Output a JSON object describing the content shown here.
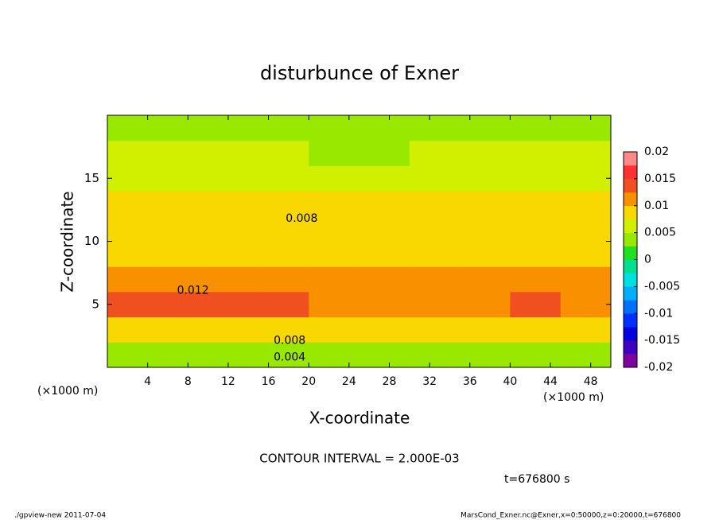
{
  "chart_data": {
    "type": "contour",
    "title": "disturbunce of Exner",
    "x_label": "X-coordinate",
    "y_label": "Z-coordinate",
    "x_unit_left": "(×1000 m)",
    "x_unit_right": "(×1000 m)",
    "x": [
      2.5,
      7.5,
      12.5,
      17.5,
      22.5,
      27.5,
      32.5,
      37.5,
      42.5,
      47.5
    ],
    "z": [
      1,
      3,
      5,
      7,
      9,
      11,
      13,
      15,
      17,
      19
    ],
    "values": [
      [
        0.004,
        0.004,
        0.004,
        0.004,
        0.004,
        0.0035,
        0.003,
        0.0035,
        0.004,
        0.004
      ],
      [
        0.009,
        0.009,
        0.009,
        0.009,
        0.009,
        0.0085,
        0.0075,
        0.0085,
        0.009,
        0.009
      ],
      [
        0.0125,
        0.0125,
        0.0125,
        0.0125,
        0.0115,
        0.011,
        0.011,
        0.011,
        0.0125,
        0.011
      ],
      [
        0.011,
        0.011,
        0.011,
        0.011,
        0.011,
        0.011,
        0.011,
        0.011,
        0.011,
        0.011
      ],
      [
        0.0095,
        0.0095,
        0.0095,
        0.0095,
        0.0095,
        0.0095,
        0.0095,
        0.0095,
        0.0095,
        0.0095
      ],
      [
        0.0085,
        0.0085,
        0.0085,
        0.0085,
        0.0085,
        0.0085,
        0.0085,
        0.0085,
        0.0085,
        0.0085
      ],
      [
        0.0075,
        0.0075,
        0.0075,
        0.0075,
        0.0075,
        0.0075,
        0.0075,
        0.0075,
        0.0075,
        0.0075
      ],
      [
        0.0065,
        0.0065,
        0.0065,
        0.0065,
        0.0065,
        0.0065,
        0.0065,
        0.0065,
        0.0065,
        0.0065
      ],
      [
        0.0055,
        0.0055,
        0.0055,
        0.005,
        0.0045,
        0.0045,
        0.005,
        0.0055,
        0.0055,
        0.0055
      ],
      [
        0.004,
        0.004,
        0.004,
        0.004,
        0.004,
        0.004,
        0.004,
        0.004,
        0.004,
        0.004
      ]
    ],
    "xlim": [
      0,
      50
    ],
    "xticks": [
      4,
      8,
      12,
      16,
      20,
      24,
      28,
      32,
      36,
      40,
      44,
      48
    ],
    "ylim": [
      0,
      20
    ],
    "yticks": [
      5,
      10,
      15
    ],
    "clim": [
      -0.02,
      0.02
    ],
    "cticks": [
      -0.02,
      -0.015,
      -0.01,
      -0.005,
      0,
      0.005,
      0.01,
      0.015,
      0.02
    ],
    "colors": [
      "#8000a0",
      "#4000c0",
      "#0000e0",
      "#0030ff",
      "#0070ff",
      "#00b0ff",
      "#00e0e0",
      "#00e090",
      "#20e020",
      "#98e800",
      "#d0f000",
      "#f8d800",
      "#f89000",
      "#f05020",
      "#ff3030",
      "#ff8888"
    ],
    "contour_labels": [
      {
        "text": "0.008",
        "x": 19.3,
        "y": 11.8
      },
      {
        "text": "0.012",
        "x": 8.5,
        "y": 6.1
      },
      {
        "text": "0.008",
        "x": 18.1,
        "y": 2.1
      },
      {
        "text": "0.004",
        "x": 18.1,
        "y": 0.8
      }
    ],
    "contour_interval": "CONTOUR INTERVAL = 2.000E-03",
    "time": "t=676800 s",
    "footer_left": "./gpview-new 2011-07-04",
    "footer_right": "MarsCond_Exner.nc@Exner,x=0:50000,z=0:20000,t=676800"
  }
}
